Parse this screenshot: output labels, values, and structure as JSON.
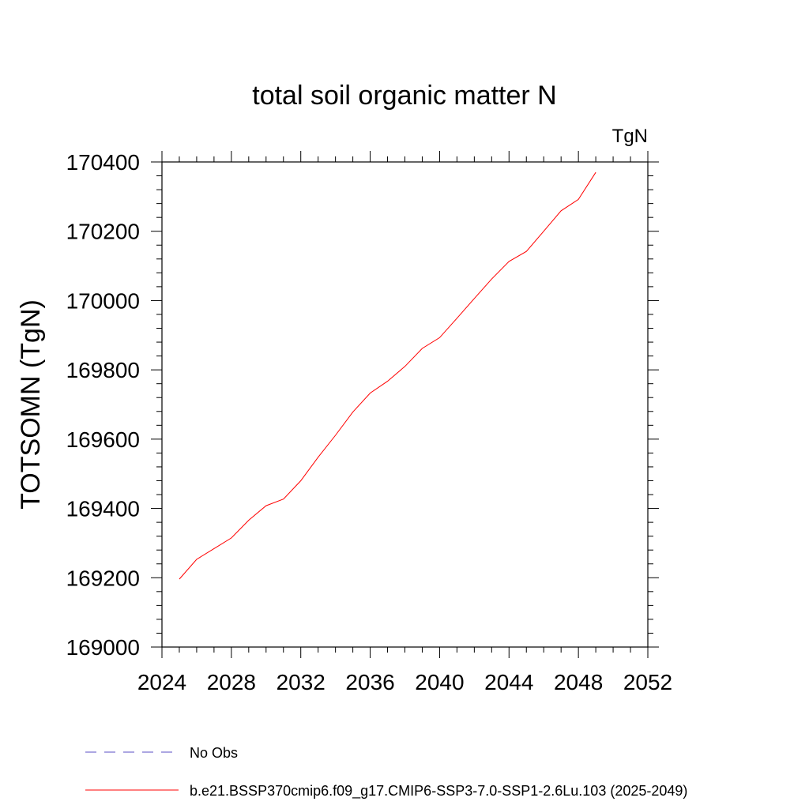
{
  "chart_data": {
    "type": "line",
    "title": "total soil organic matter N",
    "units_label": "TgN",
    "xlabel": "",
    "ylabel": "TOTSOMN  (TgN)",
    "xlim": [
      2024,
      2052
    ],
    "ylim": [
      169000,
      170400
    ],
    "x_ticks": [
      "2024",
      "2028",
      "2032",
      "2036",
      "2040",
      "2044",
      "2048",
      "2052"
    ],
    "y_ticks": [
      "169000",
      "169200",
      "169400",
      "169600",
      "169800",
      "170000",
      "170200",
      "170400"
    ],
    "grid": false,
    "series": [
      {
        "name": "b.e21.BSSP370cmip6.f09_g17.CMIP6-SSP3-7.0-SSP1-2.6Lu.103 (2025-2049)",
        "color": "#ff0000",
        "x": [
          2025,
          2026,
          2027,
          2028,
          2029,
          2030,
          2031,
          2032,
          2033,
          2034,
          2035,
          2036,
          2037,
          2038,
          2039,
          2040,
          2041,
          2042,
          2043,
          2044,
          2045,
          2046,
          2047,
          2048,
          2049
        ],
        "y": [
          169196,
          169253,
          169284,
          169315,
          169366,
          169408,
          169427,
          169480,
          169548,
          169611,
          169678,
          169733,
          169767,
          169810,
          169862,
          169893,
          169949,
          170006,
          170062,
          170113,
          170142,
          170200,
          170259,
          170292,
          170370
        ]
      }
    ],
    "legend": {
      "placement": "bottom",
      "entries": [
        {
          "label": "No Obs",
          "color": "#5b4fc4",
          "style": "dashed"
        },
        {
          "label": "b.e21.BSSP370cmip6.f09_g17.CMIP6-SSP3-7.0-SSP1-2.6Lu.103 (2025-2049)",
          "color": "#ff0000",
          "style": "solid"
        }
      ]
    }
  }
}
